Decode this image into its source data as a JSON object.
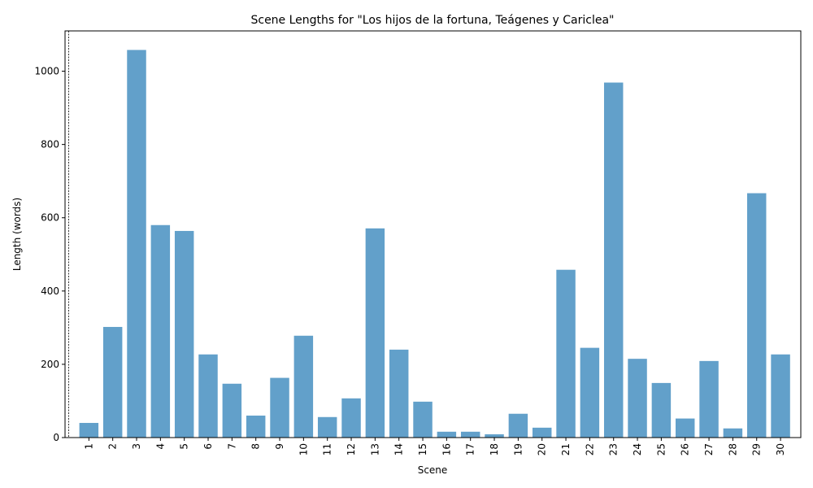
{
  "chart_data": {
    "type": "bar",
    "title": "Scene Lengths for \"Los hijos de la fortuna, Teágenes y Cariclea\"",
    "xlabel": "Scene",
    "ylabel": "Length (words)",
    "ylim": [
      0,
      1110
    ],
    "yticks": [
      0,
      200,
      400,
      600,
      800,
      1000
    ],
    "grid": false,
    "bar_color": "#1f77b4",
    "bar_opacity": 0.7,
    "reference_line": {
      "x": 0,
      "style": "dotted",
      "color": "#000000"
    },
    "categories": [
      "1",
      "2",
      "3",
      "4",
      "5",
      "6",
      "7",
      "8",
      "9",
      "10",
      "11",
      "12",
      "13",
      "14",
      "15",
      "16",
      "17",
      "18",
      "19",
      "20",
      "21",
      "22",
      "23",
      "24",
      "25",
      "26",
      "27",
      "28",
      "29",
      "30"
    ],
    "values": [
      40,
      302,
      1058,
      580,
      564,
      227,
      147,
      60,
      163,
      278,
      56,
      107,
      571,
      240,
      98,
      16,
      16,
      9,
      65,
      27,
      458,
      245,
      969,
      215,
      149,
      52,
      209,
      25,
      667,
      227
    ]
  }
}
